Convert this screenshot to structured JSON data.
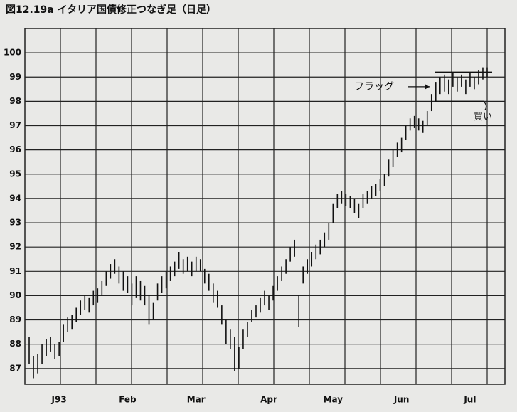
{
  "chart_data": {
    "type": "ohlc",
    "title": "図12.19a イタリア国債修正つなぎ足（日足）",
    "categories": [
      null,
      null,
      null,
      null,
      null,
      null,
      null,
      "J93",
      null,
      null,
      null,
      null,
      null,
      null,
      null,
      null,
      null,
      null,
      null,
      null,
      null,
      null,
      null,
      "Feb",
      null,
      null,
      null,
      null,
      null,
      null,
      null,
      null,
      null,
      null,
      null,
      null,
      null,
      null,
      null,
      "Mar",
      null,
      null,
      null,
      null,
      null,
      null,
      null,
      null,
      null,
      null,
      null,
      null,
      null,
      null,
      null,
      null,
      "Apr",
      null,
      null,
      null,
      null,
      null,
      null,
      null,
      null,
      null,
      null,
      null,
      null,
      null,
      null,
      "May",
      null,
      null,
      null,
      null,
      null,
      null,
      null,
      null,
      null,
      null,
      null,
      null,
      null,
      null,
      null,
      "Jun",
      null,
      null,
      null,
      null,
      null,
      null,
      null,
      null,
      null,
      null,
      null,
      null,
      null,
      null,
      null,
      "Jul",
      null,
      null,
      null,
      null
    ],
    "high": [
      88.3,
      87.5,
      87.6,
      88.0,
      88.2,
      88.3,
      88.0,
      88.1,
      88.8,
      89.1,
      89.2,
      89.5,
      89.8,
      90.0,
      89.9,
      90.2,
      90.3,
      90.6,
      91.0,
      91.3,
      91.5,
      91.2,
      91.0,
      90.8,
      90.5,
      90.8,
      90.6,
      90.4,
      90.0,
      89.7,
      90.5,
      90.8,
      91.0,
      91.2,
      91.4,
      91.8,
      91.5,
      91.6,
      91.4,
      91.6,
      91.5,
      91.1,
      90.9,
      90.5,
      90.2,
      89.6,
      89.0,
      88.6,
      88.3,
      87.9,
      88.6,
      88.9,
      89.4,
      89.6,
      89.9,
      90.2,
      90.0,
      90.4,
      90.8,
      91.2,
      91.5,
      92.0,
      92.3,
      90.0,
      91.2,
      91.5,
      91.8,
      92.1,
      92.3,
      92.6,
      93.0,
      93.8,
      94.2,
      94.3,
      94.2,
      94.1,
      94.0,
      93.8,
      94.2,
      94.3,
      94.5,
      94.6,
      94.8,
      95.0,
      95.6,
      96.0,
      96.3,
      96.5,
      97.0,
      97.3,
      97.4,
      97.3,
      97.2,
      97.6,
      98.3,
      98.8,
      99.0,
      99.1,
      98.9,
      99.2,
      99.0,
      99.1,
      98.9,
      99.2,
      99.0,
      99.3,
      99.4,
      99.4
    ],
    "low": [
      87.2,
      86.6,
      86.8,
      87.2,
      87.5,
      87.7,
      87.4,
      87.5,
      88.1,
      88.5,
      88.6,
      88.9,
      89.2,
      89.4,
      89.3,
      89.6,
      89.7,
      90.0,
      90.4,
      90.7,
      90.9,
      90.5,
      90.2,
      90.1,
      89.6,
      89.9,
      89.8,
      89.6,
      88.8,
      89.0,
      89.8,
      90.1,
      90.3,
      90.6,
      90.8,
      91.1,
      90.9,
      91.0,
      90.8,
      91.0,
      91.0,
      90.5,
      90.2,
      89.7,
      89.5,
      88.8,
      88.0,
      87.8,
      86.9,
      87.0,
      87.8,
      88.3,
      88.9,
      89.1,
      89.3,
      89.6,
      89.4,
      89.8,
      90.2,
      90.6,
      90.9,
      91.4,
      91.6,
      88.7,
      90.5,
      90.9,
      91.2,
      91.5,
      91.7,
      92.0,
      92.3,
      93.0,
      93.6,
      93.8,
      93.7,
      93.6,
      93.4,
      93.2,
      93.6,
      93.8,
      94.0,
      94.1,
      94.3,
      94.5,
      94.9,
      95.3,
      95.7,
      95.9,
      96.4,
      96.8,
      96.9,
      96.8,
      96.7,
      97.0,
      97.6,
      98.0,
      98.3,
      98.4,
      98.3,
      98.6,
      98.4,
      98.6,
      98.3,
      98.6,
      98.5,
      98.7,
      98.9,
      99.0
    ],
    "color": "#111111",
    "ylim": [
      86.35,
      101
    ],
    "yticks": [
      87,
      88,
      89,
      90,
      91,
      92,
      93,
      94,
      95,
      96,
      97,
      98,
      99,
      100
    ],
    "grid": true,
    "flag_top": 99.2,
    "flag_bottom": 98.0,
    "flag_label": "フラッグ",
    "buy_label": "買い"
  }
}
